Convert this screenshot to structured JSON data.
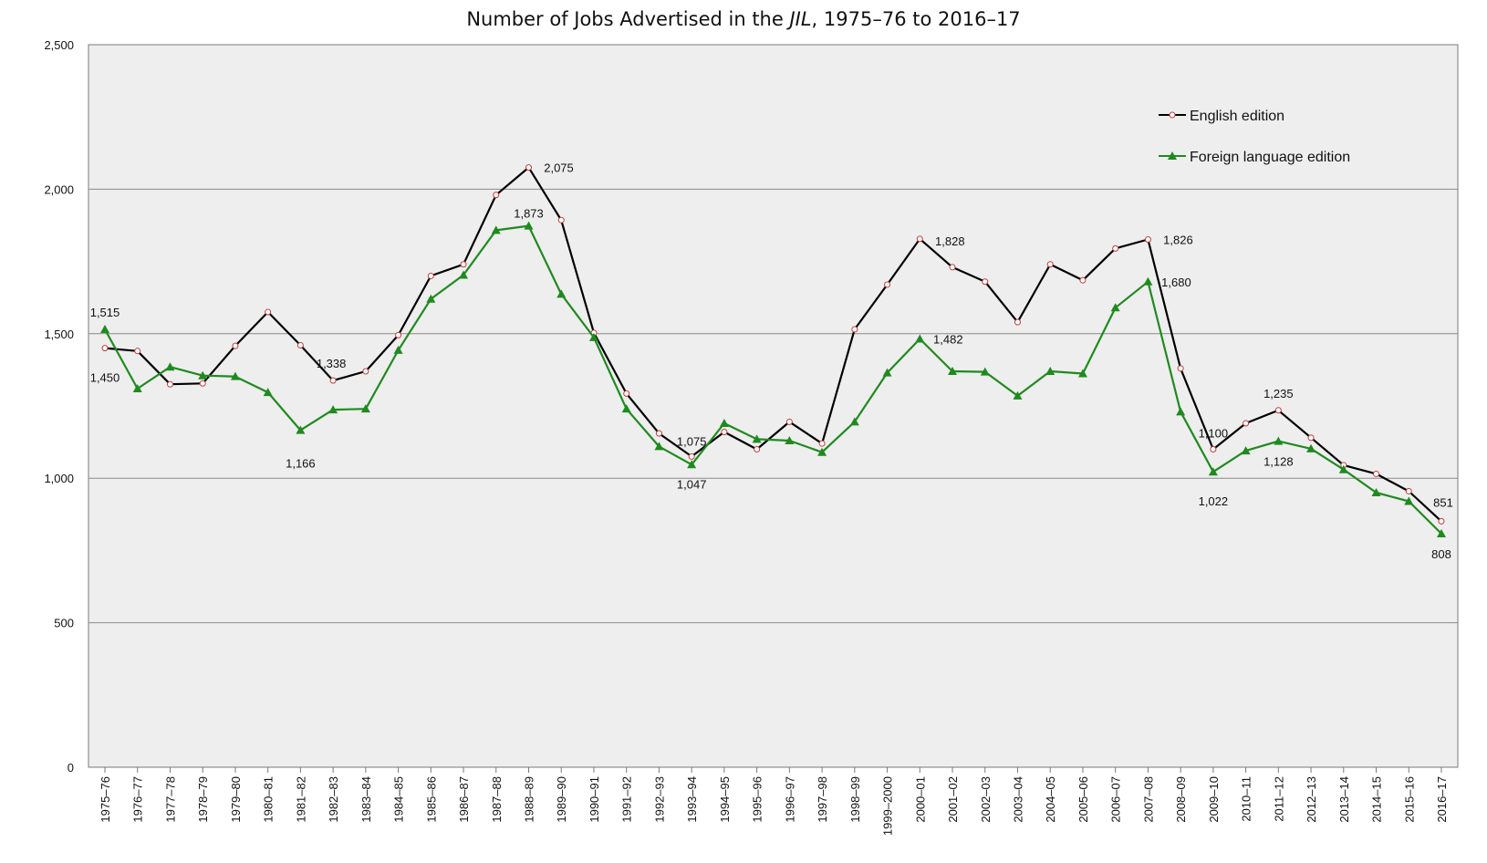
{
  "chart_data": {
    "type": "line",
    "title": "Number of Jobs Advertised in the ",
    "title_italic": "JIL",
    "title_rest": ", 1975–76 to 2016–17",
    "xlabel": "",
    "ylabel": "",
    "ylim": [
      0,
      2500
    ],
    "yticks": [
      0,
      500,
      1000,
      1500,
      2000,
      2500
    ],
    "ytick_labels": [
      "0",
      "500",
      "1,000",
      "1,500",
      "2,000",
      "2,500"
    ],
    "grid": true,
    "legend_position": "top-right",
    "categories": [
      "1975–76",
      "1976–77",
      "1977–78",
      "1978–79",
      "1979–80",
      "1980–81",
      "1981–82",
      "1982–83",
      "1983–84",
      "1984–85",
      "1985–86",
      "1986–87",
      "1987–88",
      "1988–89",
      "1989–90",
      "1990–91",
      "1991–92",
      "1992–93",
      "1993–94",
      "1994–95",
      "1995–96",
      "1996–97",
      "1997–98",
      "1998–99",
      "1999–2000",
      "2000–01",
      "2001–02",
      "2002–03",
      "2003–04",
      "2004–05",
      "2005–06",
      "2006–07",
      "2007–08",
      "2008–09",
      "2009–10",
      "2010–11",
      "2011–12",
      "2012–13",
      "2013–14",
      "2014–15",
      "2015–16",
      "2016–17"
    ],
    "series": [
      {
        "name": "English edition",
        "color": "#000000",
        "marker": "circle",
        "values": [
          1450,
          1440,
          1325,
          1328,
          1458,
          1575,
          1460,
          1338,
          1370,
          1495,
          1700,
          1740,
          1980,
          2075,
          1893,
          1503,
          1293,
          1155,
          1075,
          1160,
          1100,
          1195,
          1120,
          1515,
          1670,
          1828,
          1730,
          1680,
          1540,
          1740,
          1685,
          1795,
          1826,
          1380,
          1100,
          1190,
          1235,
          1140,
          1045,
          1015,
          955,
          851
        ]
      },
      {
        "name": "Foreign language edition",
        "color": "#1f8a1f",
        "marker": "triangle",
        "values": [
          1515,
          1310,
          1385,
          1355,
          1352,
          1297,
          1166,
          1237,
          1240,
          1443,
          1620,
          1703,
          1858,
          1873,
          1637,
          1487,
          1240,
          1110,
          1047,
          1190,
          1135,
          1130,
          1090,
          1195,
          1365,
          1482,
          1370,
          1368,
          1285,
          1370,
          1362,
          1590,
          1680,
          1230,
          1022,
          1095,
          1128,
          1102,
          1030,
          950,
          920,
          808
        ]
      }
    ],
    "data_labels": {
      "english": [
        {
          "i": 0,
          "text": "1,450"
        },
        {
          "i": 7,
          "text": "1,338"
        },
        {
          "i": 13,
          "text": "2,075"
        },
        {
          "i": 18,
          "text": "1,075"
        },
        {
          "i": 25,
          "text": "1,828"
        },
        {
          "i": 32,
          "text": "1,826"
        },
        {
          "i": 34,
          "text": "1,100"
        },
        {
          "i": 36,
          "text": "1,235"
        },
        {
          "i": 41,
          "text": "851"
        }
      ],
      "foreign": [
        {
          "i": 0,
          "text": "1,515"
        },
        {
          "i": 6,
          "text": "1,166"
        },
        {
          "i": 13,
          "text": "1,873"
        },
        {
          "i": 18,
          "text": "1,047"
        },
        {
          "i": 25,
          "text": "1,482"
        },
        {
          "i": 32,
          "text": "1,680"
        },
        {
          "i": 34,
          "text": "1,022"
        },
        {
          "i": 36,
          "text": "1,128"
        },
        {
          "i": 41,
          "text": "808"
        }
      ]
    }
  }
}
